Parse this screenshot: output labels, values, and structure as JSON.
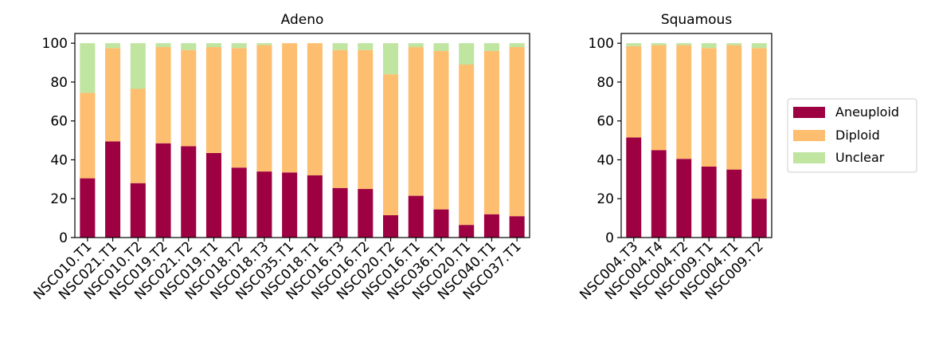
{
  "colors": {
    "aneuploid": "#9e0142",
    "diploid": "#fdbe6f",
    "unclear": "#bfe5a0",
    "axis": "#000000"
  },
  "legend": {
    "placement": "right",
    "entries": [
      "Aneuploid",
      "Diploid",
      "Unclear"
    ]
  },
  "chart_data": [
    {
      "type": "bar",
      "stacked": true,
      "title": "Adeno",
      "xlabel": "",
      "ylabel": "",
      "ylim": [
        0,
        105
      ],
      "yticks": [
        0,
        20,
        40,
        60,
        80,
        100
      ],
      "grid": false,
      "categories": [
        "NSC010.T1",
        "NSC021.T1",
        "NSC010.T2",
        "NSC019.T2",
        "NSC021.T2",
        "NSC019.T1",
        "NSC018.T2",
        "NSC018.T3",
        "NSC035.T1",
        "NSC018.T1",
        "NSC016.T3",
        "NSC016.T2",
        "NSC020.T2",
        "NSC016.T1",
        "NSC036.T1",
        "NSC020.T1",
        "NSC040.T1",
        "NSC037.T1"
      ],
      "series": [
        {
          "name": "Aneuploid",
          "values": [
            30.5,
            49.5,
            28,
            48.5,
            47,
            43.5,
            36,
            34,
            33.5,
            32,
            25.5,
            25,
            11.5,
            21.5,
            14.5,
            6.5,
            12,
            11
          ]
        },
        {
          "name": "Diploid",
          "values": [
            44,
            48,
            48.5,
            49.5,
            49.5,
            54.5,
            61.5,
            65,
            66.5,
            68,
            71,
            71.5,
            72.5,
            76.5,
            81.5,
            82.5,
            84,
            87
          ]
        },
        {
          "name": "Unclear",
          "values": [
            25.5,
            2.5,
            23.5,
            2,
            3.5,
            2,
            2.5,
            1,
            0,
            0,
            3.5,
            3.5,
            16,
            2,
            4,
            11,
            4,
            2
          ]
        }
      ]
    },
    {
      "type": "bar",
      "stacked": true,
      "title": "Squamous",
      "xlabel": "",
      "ylabel": "",
      "ylim": [
        0,
        105
      ],
      "yticks": [
        0,
        20,
        40,
        60,
        80,
        100
      ],
      "grid": false,
      "categories": [
        "NSC004.T3",
        "NSC004.T4",
        "NSC004.T2",
        "NSC009.T1",
        "NSC004.T1",
        "NSC009.T2"
      ],
      "series": [
        {
          "name": "Aneuploid",
          "values": [
            51.5,
            45,
            40.5,
            36.5,
            35,
            20
          ]
        },
        {
          "name": "Diploid",
          "values": [
            47,
            54,
            58.5,
            61,
            64,
            77.5
          ]
        },
        {
          "name": "Unclear",
          "values": [
            1.5,
            1,
            1,
            2.5,
            1,
            2.5
          ]
        }
      ]
    }
  ]
}
